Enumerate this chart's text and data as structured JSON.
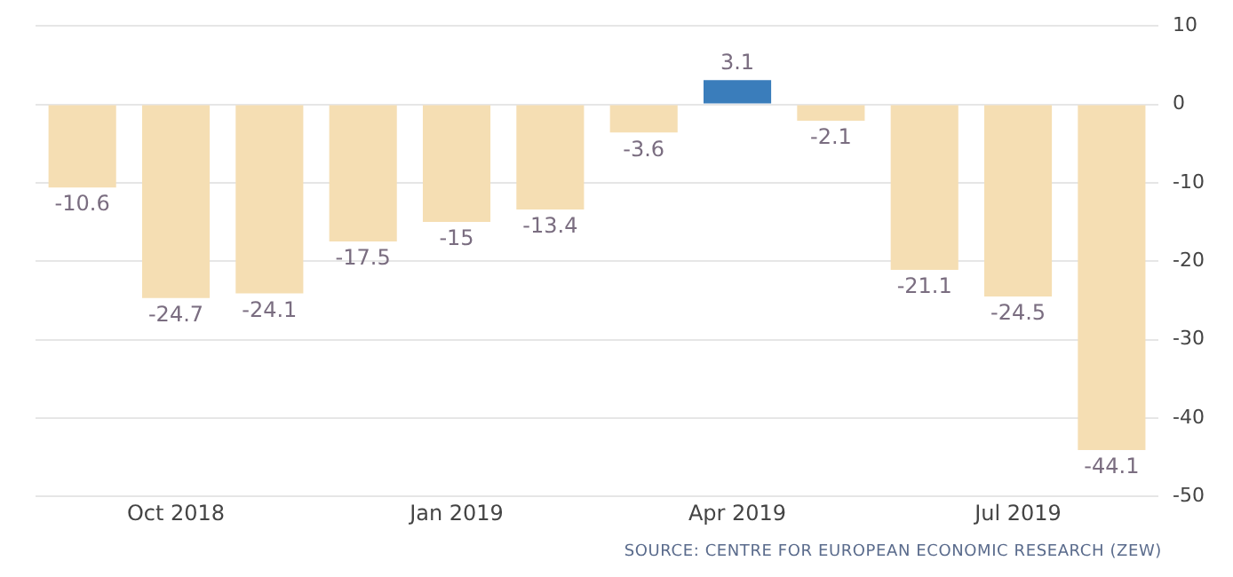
{
  "chart_data": {
    "type": "bar",
    "categories": [
      null,
      "Oct 2018",
      null,
      null,
      "Jan 2019",
      null,
      null,
      "Apr 2019",
      null,
      null,
      "Jul 2019",
      null
    ],
    "values": [
      -10.6,
      -24.7,
      -24.1,
      -17.5,
      -15,
      -13.4,
      -3.6,
      3.1,
      -2.1,
      -21.1,
      -24.5,
      -44.1
    ],
    "colors": [
      "#f5deb3",
      "#f5deb3",
      "#f5deb3",
      "#f5deb3",
      "#f5deb3",
      "#f5deb3",
      "#f5deb3",
      "#3a7dbb",
      "#f5deb3",
      "#f5deb3",
      "#f5deb3",
      "#f5deb3"
    ],
    "ylim": [
      -50,
      10
    ],
    "yticks": [
      -50,
      -40,
      -30,
      -20,
      -10,
      0,
      10
    ],
    "grid": "y",
    "data_labels": true,
    "legend": false,
    "annotations": [
      "SOURCE: CENTRE FOR EUROPEAN ECONOMIC RESEARCH (ZEW)"
    ]
  }
}
